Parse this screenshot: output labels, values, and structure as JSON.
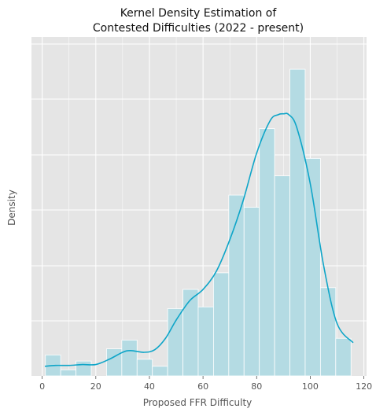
{
  "chart_data": {
    "type": "histogram",
    "title": [
      "Kernel Density Estimation of",
      "Contested Difficulties (2022 - present)"
    ],
    "xlabel": "Proposed FFR Difficulty",
    "ylabel": "Density",
    "xlim": [
      -4,
      121
    ],
    "xticks": [
      0,
      20,
      40,
      60,
      80,
      100,
      120
    ],
    "y_tick_labels_shown": false,
    "grid": true,
    "colors": {
      "background": "#e5e5e5",
      "grid": "#ffffff",
      "bar_fill": "#b4dbe3",
      "kde_line": "#0ea5c8"
    },
    "bins": [
      {
        "x0": 1.2,
        "x1": 6.9,
        "value": 1.2
      },
      {
        "x0": 6.9,
        "x1": 12.6,
        "value": 0.35
      },
      {
        "x0": 12.6,
        "x1": 18.3,
        "value": 0.85
      },
      {
        "x0": 18.3,
        "x1": 24.0,
        "value": 0.0
      },
      {
        "x0": 24.0,
        "x1": 29.7,
        "value": 1.55
      },
      {
        "x0": 29.7,
        "x1": 35.4,
        "value": 2.05
      },
      {
        "x0": 35.4,
        "x1": 41.1,
        "value": 0.95
      },
      {
        "x0": 41.1,
        "x1": 46.8,
        "value": 0.55
      },
      {
        "x0": 46.8,
        "x1": 52.5,
        "value": 3.85
      },
      {
        "x0": 52.5,
        "x1": 58.2,
        "value": 4.95
      },
      {
        "x0": 58.2,
        "x1": 63.9,
        "value": 3.95
      },
      {
        "x0": 63.9,
        "x1": 69.6,
        "value": 5.9
      },
      {
        "x0": 69.6,
        "x1": 75.3,
        "value": 10.35
      },
      {
        "x0": 75.3,
        "x1": 81.0,
        "value": 9.65
      },
      {
        "x0": 81.0,
        "x1": 86.7,
        "value": 14.15
      },
      {
        "x0": 86.7,
        "x1": 92.4,
        "value": 11.45
      },
      {
        "x0": 92.4,
        "x1": 98.1,
        "value": 17.55
      },
      {
        "x0": 98.1,
        "x1": 103.8,
        "value": 12.45
      },
      {
        "x0": 103.8,
        "x1": 109.5,
        "value": 5.05
      },
      {
        "x0": 109.5,
        "x1": 115.2,
        "value": 2.15
      }
    ],
    "kde": {
      "x": [
        1,
        5,
        10,
        15,
        20,
        25,
        30,
        33,
        38,
        42,
        46,
        50,
        55,
        60,
        65,
        70,
        75,
        80,
        85,
        88,
        90,
        92,
        95,
        100,
        105,
        110,
        116
      ],
      "y": [
        0.55,
        0.6,
        0.6,
        0.65,
        0.65,
        0.95,
        1.35,
        1.45,
        1.35,
        1.5,
        2.15,
        3.2,
        4.3,
        4.95,
        6.0,
        7.8,
        10.05,
        12.75,
        14.6,
        14.95,
        15.0,
        14.95,
        14.2,
        11.0,
        6.3,
        3.0,
        1.9
      ]
    },
    "ylim": [
      0,
      19.4
    ]
  }
}
